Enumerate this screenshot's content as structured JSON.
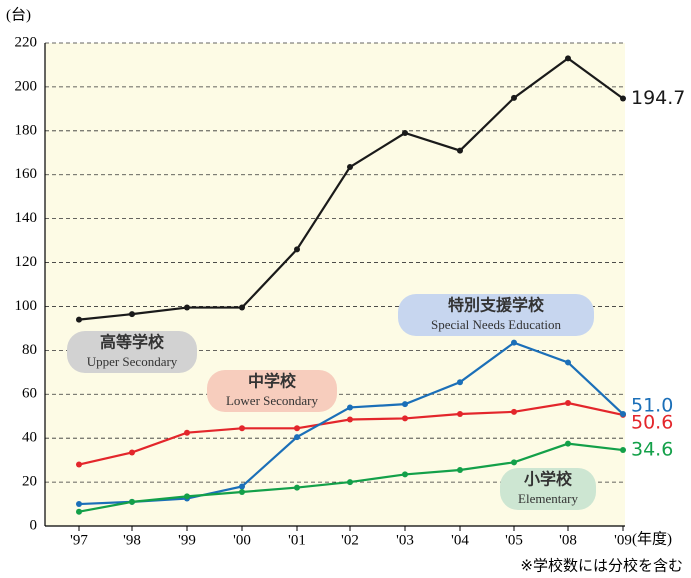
{
  "chart_data": {
    "type": "line",
    "y_unit": "(台)",
    "x_unit": "(年度)",
    "footnote": "※学校数には分校を含む",
    "categories": [
      "'97",
      "'98",
      "'99",
      "'00",
      "'01",
      "'02",
      "'03",
      "'04",
      "'05",
      "'08",
      "'09"
    ],
    "ylim": [
      0,
      220
    ],
    "yticks": [
      0,
      20,
      40,
      60,
      80,
      100,
      120,
      140,
      160,
      180,
      200,
      220
    ],
    "grid": true,
    "series": [
      {
        "name": "高等学校",
        "name_en": "Upper Secondary",
        "color": "#1a1a1a",
        "label_color": "#d2d2d2",
        "values": [
          94,
          96.5,
          99.5,
          99.5,
          126,
          163.5,
          179,
          171,
          195,
          213,
          194.7
        ],
        "value_labels": [
          null,
          null,
          null,
          null,
          null,
          null,
          null,
          null,
          null,
          null,
          "194.7"
        ]
      },
      {
        "name": "中学校",
        "name_en": "Lower Secondary",
        "color": "#e3262b",
        "label_color": "#f7cdbd",
        "values": [
          28,
          33.5,
          42.5,
          44.5,
          44.5,
          48.5,
          49,
          51,
          52,
          56,
          50.6
        ],
        "value_labels": [
          null,
          null,
          null,
          null,
          null,
          null,
          null,
          null,
          null,
          null,
          "50.6"
        ]
      },
      {
        "name": "特別支援学校",
        "name_en": "Special Needs Education",
        "color": "#1b6fb8",
        "label_color": "#c7d6ef",
        "values": [
          10,
          11,
          12.5,
          18,
          40.5,
          54,
          55.5,
          65.5,
          83.5,
          74.5,
          51.0
        ],
        "value_labels": [
          null,
          null,
          null,
          null,
          null,
          null,
          null,
          null,
          null,
          null,
          "51.0"
        ]
      },
      {
        "name": "小学校",
        "name_en": "Elementary",
        "color": "#13a049",
        "label_color": "#cde6d2",
        "values": [
          6.5,
          11,
          13.5,
          15.5,
          17.5,
          20,
          23.5,
          25.5,
          29,
          37.5,
          34.6
        ],
        "value_labels": [
          null,
          null,
          null,
          null,
          null,
          null,
          null,
          null,
          null,
          null,
          "34.6"
        ]
      }
    ]
  }
}
